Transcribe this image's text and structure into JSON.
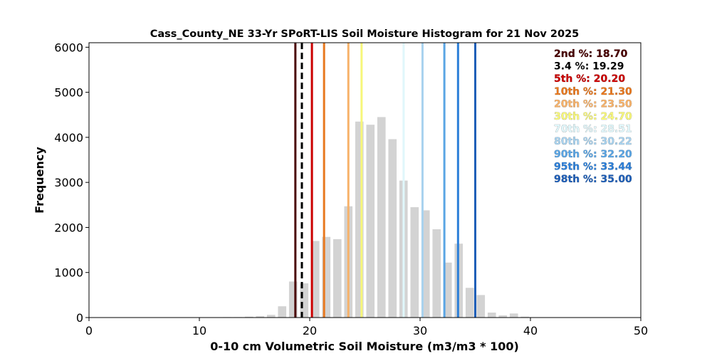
{
  "chart_data": {
    "type": "bar",
    "title": "Cass_County_NE 33-Yr SPoRT-LIS Soil Moisture Histogram for 21 Nov 2025",
    "xlabel": "0-10 cm Volumetric Soil Moisture (m3/m3 * 100)",
    "ylabel": "Frequency",
    "xlim": [
      0,
      50
    ],
    "ylim": [
      0,
      6100
    ],
    "xticks": [
      "0",
      "10",
      "20",
      "30",
      "40",
      "50"
    ],
    "xtick_values": [
      0,
      10,
      20,
      30,
      40,
      50
    ],
    "yticks": [
      "0",
      "1000",
      "2000",
      "3000",
      "4000",
      "5000",
      "6000"
    ],
    "ytick_values": [
      0,
      1000,
      2000,
      3000,
      4000,
      5000,
      6000
    ],
    "grid": false,
    "bar_color": "#d3d3d3",
    "bin_width": 1.0,
    "bars": {
      "x": [
        12.5,
        13.5,
        14.5,
        15.5,
        16.5,
        17.5,
        18.5,
        19.5,
        20.5,
        21.5,
        22.5,
        23.5,
        24.5,
        25.5,
        26.5,
        27.5,
        28.5,
        29.5,
        30.5,
        31.5,
        32.5,
        33.5,
        34.5,
        35.5,
        36.5,
        37.5,
        38.5,
        39.5
      ],
      "values": [
        10,
        10,
        20,
        30,
        60,
        250,
        800,
        760,
        1700,
        1790,
        1740,
        2470,
        4350,
        4280,
        4450,
        3960,
        3040,
        2450,
        2380,
        1960,
        1220,
        1640,
        660,
        500,
        110,
        50,
        90,
        20
      ]
    },
    "percentile_lines": [
      {
        "label": "2nd %: 18.70",
        "value": 18.7,
        "color": "#4a0000",
        "style": "solid"
      },
      {
        "label": "3.4 %: 19.29",
        "value": 19.29,
        "color": "#000000",
        "style": "dashed"
      },
      {
        "label": "5th %: 20.20",
        "value": 20.2,
        "color": "#cc0000",
        "style": "solid"
      },
      {
        "label": "10th %: 21.30",
        "value": 21.3,
        "color": "#e8781e",
        "style": "solid"
      },
      {
        "label": "20th %: 23.50",
        "value": 23.5,
        "color": "#f7b26a",
        "style": "solid"
      },
      {
        "label": "30th %: 24.70",
        "value": 24.7,
        "color": "#f7f77a",
        "style": "solid"
      },
      {
        "label": "70th %: 28.51",
        "value": 28.51,
        "color": "#e0f7fb",
        "style": "solid"
      },
      {
        "label": "80th %: 30.22",
        "value": 30.22,
        "color": "#a8d2ee",
        "style": "solid"
      },
      {
        "label": "90th %: 32.20",
        "value": 32.2,
        "color": "#5aa5e4",
        "style": "solid"
      },
      {
        "label": "95th %: 33.44",
        "value": 33.44,
        "color": "#2c7fd8",
        "style": "solid"
      },
      {
        "label": "98th %: 35.00",
        "value": 35.0,
        "color": "#1f5fb8",
        "style": "solid"
      }
    ],
    "legend_placement": "top-right"
  }
}
